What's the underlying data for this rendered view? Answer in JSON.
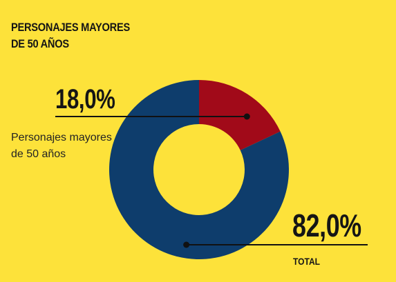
{
  "chart_data": {
    "type": "pie",
    "title": "PERSONAJES MAYORES\nDE 50 AÑOS",
    "title_lines": [
      "PERSONAJES MAYORES",
      "DE 50 AÑOS"
    ],
    "categories": [
      "Personajes mayores de 50 años",
      "TOTAL"
    ],
    "values": [
      18.0,
      82.0
    ],
    "value_labels": [
      "18,0%",
      "82,0%"
    ],
    "colors": [
      "#a10a19",
      "#0e3d6c"
    ],
    "background": "#fde23a",
    "donut": true,
    "legend": "none"
  }
}
